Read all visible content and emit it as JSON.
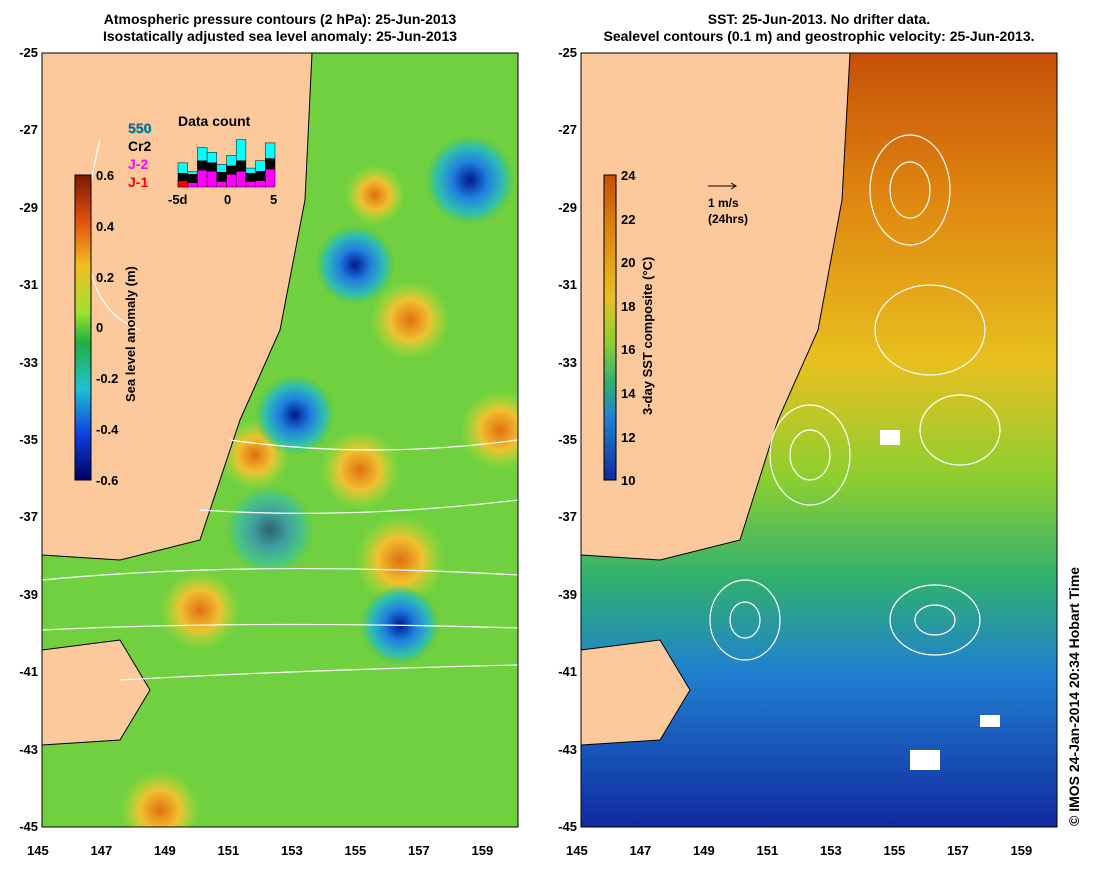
{
  "left_panel": {
    "title_line1": "Atmospheric pressure contours (2 hPa): 25-Jun-2013",
    "title_line2": "Isostatically adjusted sea level anomaly: 25-Jun-2013",
    "colorbar": {
      "label": "Sea level anomaly (m)",
      "ticks": [
        "0.6",
        "0.4",
        "0.2",
        "0",
        "-0.2",
        "-0.4",
        "-0.6"
      ],
      "range": [
        -0.6,
        0.6
      ]
    },
    "legend": {
      "title": "Data count",
      "satellites": [
        {
          "name": "550",
          "color": "#00ffff"
        },
        {
          "name": "Cr2",
          "color": "#000000"
        },
        {
          "name": "J-2",
          "color": "#ff00ff"
        },
        {
          "name": "J-1",
          "color": "#ff0000"
        }
      ],
      "axis_ticks": [
        "-5d",
        "0",
        "5"
      ],
      "histogram": {
        "cyan": [
          4,
          1,
          5,
          4,
          3,
          4,
          8,
          2,
          4,
          6
        ],
        "black": [
          7,
          8,
          9,
          8,
          9,
          8,
          10,
          8,
          9,
          10
        ],
        "magenta": [
          6,
          4,
          16,
          15,
          5,
          12,
          15,
          5,
          6,
          17
        ],
        "red": [
          6,
          0,
          0,
          0,
          0,
          0,
          0,
          0,
          0,
          0
        ]
      }
    }
  },
  "right_panel": {
    "title_line1": "SST: 25-Jun-2013. No drifter data.",
    "title_line2": "Sealevel contours (0.1 m) and geostrophic velocity: 25-Jun-2013.",
    "colorbar": {
      "label": "3-day SST composite (°C)",
      "ticks": [
        "24",
        "22",
        "20",
        "18",
        "16",
        "14",
        "12",
        "10"
      ],
      "range": [
        10,
        24
      ]
    },
    "velocity_key": {
      "label": "1 m/s",
      "sublabel": "(24hrs)"
    }
  },
  "axes": {
    "lat_ticks": [
      "-25",
      "-27",
      "-29",
      "-31",
      "-33",
      "-35",
      "-37",
      "-39",
      "-41",
      "-43",
      "-45"
    ],
    "lon_ticks": [
      "145",
      "147",
      "149",
      "151",
      "153",
      "155",
      "157",
      "159"
    ]
  },
  "credit": "© IMOS 24-Jan-2014 20:34 Hobart Time",
  "colors": {
    "land": "#fbc99b",
    "background": "#ffffff"
  }
}
